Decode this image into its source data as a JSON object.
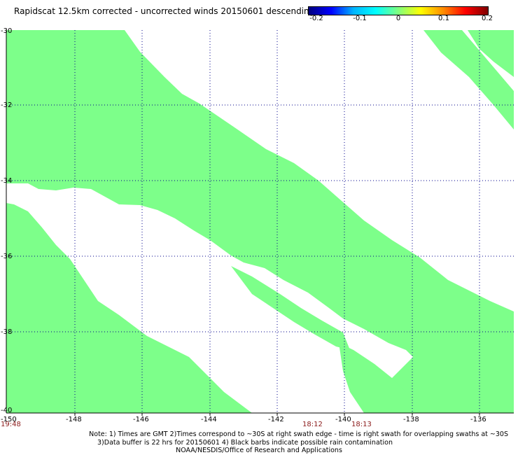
{
  "title": "Rapidscat 12.5km corrected - uncorrected winds 20150601 descending",
  "colorbar": {
    "ticks": [
      "-0.2",
      "-0.1",
      "0",
      "0.1",
      "0.2"
    ],
    "range": [
      -0.2,
      0.2
    ],
    "colors": [
      "#00007f",
      "#0000ff",
      "#00b4ff",
      "#00ffff",
      "#7fff7f",
      "#ffff00",
      "#ff8c00",
      "#ff0000",
      "#7f0000"
    ]
  },
  "map": {
    "lon_range": [
      -150,
      -135
    ],
    "lat_range": [
      -40,
      -30
    ],
    "x_ticks": [
      "-150",
      "-148",
      "-146",
      "-144",
      "-142",
      "-140",
      "-138",
      "-136"
    ],
    "y_ticks": [
      "-30",
      "-32",
      "-34",
      "-36",
      "-38",
      "-40"
    ],
    "grid": true,
    "data_color": "#7dff8a"
  },
  "time_labels": [
    {
      "text": "19:48",
      "lon": -150.0
    },
    {
      "text": "18:12",
      "lon": -141.1
    },
    {
      "text": "18:13",
      "lon": -139.6
    }
  ],
  "notes": [
    "Note: 1) Times are GMT 2)Times correspond to ~30S at right swath edge - time is right swath for overlapping swaths at ~30S",
    "3)Data buffer is 22 hrs for 20150601 4) Black barbs indicate possible rain contamination",
    "NOAA/NESDIS/Office of Research and Applications"
  ]
}
